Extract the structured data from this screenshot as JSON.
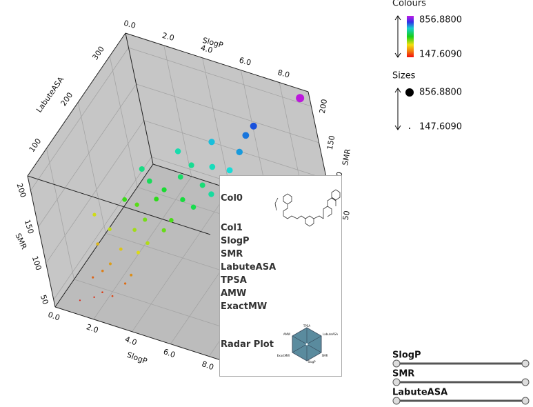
{
  "chart_data": {
    "type": "scatter3d",
    "x_label": "SlogP",
    "y_label": "SMR",
    "z_label": "LabuteASA",
    "xlim": [
      0,
      9.5
    ],
    "ylim": [
      40,
      220
    ],
    "zlim": [
      40,
      350
    ],
    "xticks": [
      {
        "value": 0,
        "label": "0.0"
      },
      {
        "value": 2,
        "label": "2.0"
      },
      {
        "value": 4,
        "label": "4.0"
      },
      {
        "value": 6,
        "label": "6.0"
      },
      {
        "value": 8,
        "label": "8.0"
      }
    ],
    "yticks": [
      50,
      100,
      150,
      200
    ],
    "zticks": [
      100,
      200,
      300
    ],
    "grid": true,
    "color_title": "Colours",
    "color_range": [
      {
        "value": 147.609,
        "label": "147.6090"
      },
      {
        "value": 856.88,
        "label": "856.8800"
      }
    ],
    "size_title": "Sizes",
    "size_range": [
      {
        "value": 147.609,
        "label": "147.6090"
      },
      {
        "value": 856.88,
        "label": "856.8800"
      }
    ],
    "points": {
      "x": [
        1.0,
        1.6,
        2.0,
        2.4,
        1.3,
        2.8,
        1.8,
        3.0,
        2.2,
        1.5,
        2.5,
        3.2,
        2.0,
        3.6,
        2.8,
        1.2,
        3.5,
        4.2,
        3.0,
        4.5,
        2.6,
        3.8,
        4.0,
        4.8,
        5.2,
        3.4,
        4.6,
        5.5,
        3.0,
        5.0,
        6.0,
        4.3,
        5.8,
        6.5,
        5.6,
        6.8,
        7.0,
        7.2,
        9.2
      ],
      "y": [
        45,
        48,
        55,
        50,
        60,
        58,
        70,
        65,
        80,
        95,
        90,
        85,
        110,
        95,
        100,
        120,
        120,
        105,
        130,
        115,
        140,
        135,
        140,
        130,
        120,
        150,
        150,
        140,
        160,
        160,
        135,
        170,
        155,
        150,
        175,
        165,
        180,
        185,
        215
      ],
      "z": [
        60,
        70,
        75,
        80,
        90,
        100,
        95,
        110,
        100,
        110,
        120,
        130,
        125,
        140,
        150,
        130,
        150,
        160,
        160,
        170,
        150,
        175,
        190,
        195,
        200,
        185,
        210,
        220,
        190,
        225,
        215,
        230,
        240,
        250,
        260,
        270,
        285,
        300,
        340
      ],
      "c": [
        160,
        175,
        190,
        200,
        230,
        240,
        260,
        280,
        300,
        330,
        350,
        370,
        390,
        400,
        410,
        380,
        440,
        450,
        460,
        470,
        480,
        490,
        520,
        530,
        540,
        550,
        560,
        570,
        580,
        590,
        600,
        610,
        620,
        640,
        660,
        680,
        700,
        720,
        856.88
      ]
    }
  },
  "tooltip": {
    "rows": [
      "Col0",
      "Col1",
      "SlogP",
      "SMR",
      "LabuteASA",
      "TPSA",
      "AMW",
      "ExactMW",
      "Radar Plot"
    ],
    "radar_labels": [
      "TPSA",
      "LabuteASA",
      "SMR",
      "SlogP",
      "ExactMW",
      "AMW"
    ]
  },
  "sliders": [
    "SlogP",
    "SMR",
    "LabuteASA"
  ]
}
